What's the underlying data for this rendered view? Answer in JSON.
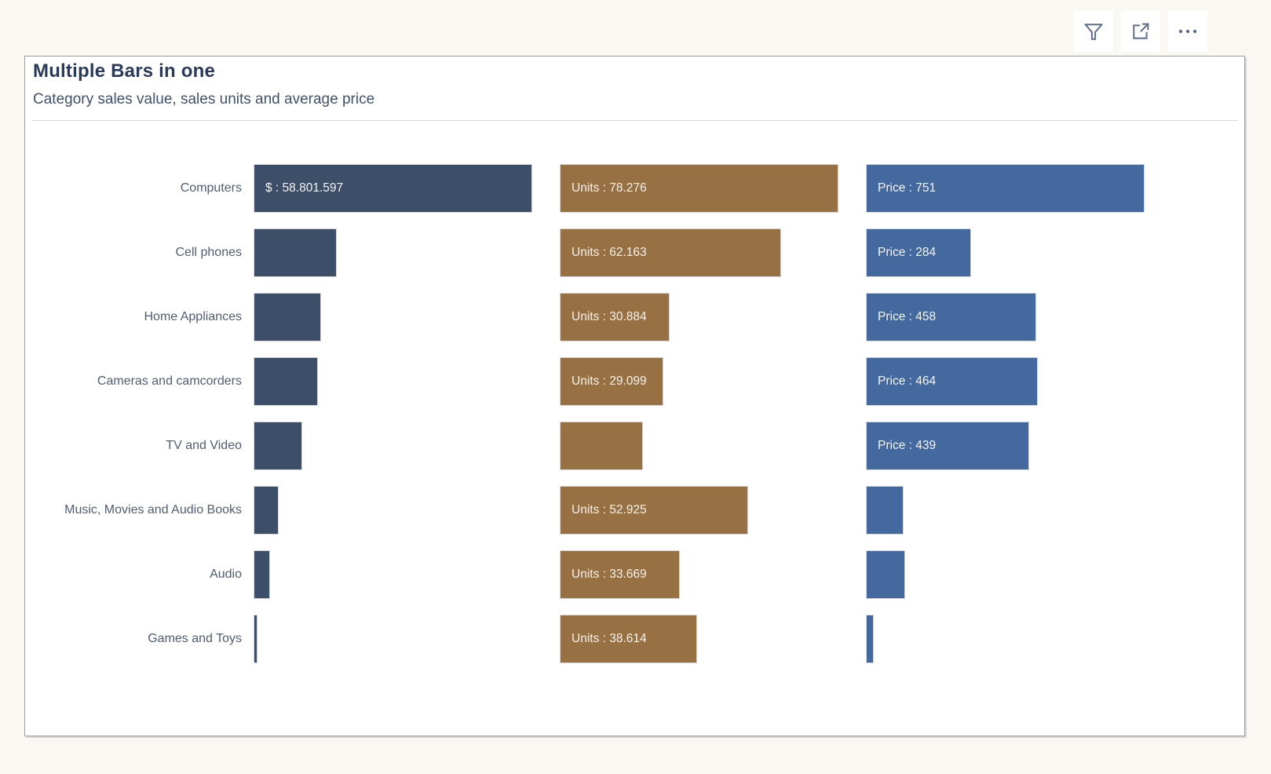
{
  "page": {
    "background": "#FAF8F3"
  },
  "toolbar": {
    "icons": [
      {
        "name": "filter-icon"
      },
      {
        "name": "focus-mode-icon"
      },
      {
        "name": "more-options-icon"
      }
    ],
    "icon_color": "#5F6E8C"
  },
  "card": {
    "title": "Multiple Bars in one",
    "subtitle": "Category sales value, sales units and average price"
  },
  "chart": {
    "series": [
      {
        "key": "sales",
        "name": "$",
        "color": "#3D4E69"
      },
      {
        "key": "units",
        "name": "Units",
        "color": "#977043"
      },
      {
        "key": "price",
        "name": "Price",
        "color": "#44699E"
      }
    ],
    "rows": [
      {
        "category": "Computers",
        "bars": [
          {
            "frac": 1.0,
            "label": "$ : 58.801.597"
          },
          {
            "frac": 1.0,
            "label": "Units : 78.276"
          },
          {
            "frac": 1.0,
            "label": "Price : 751"
          }
        ]
      },
      {
        "category": "Cell phones",
        "bars": [
          {
            "frac": 0.298,
            "label": null
          },
          {
            "frac": 0.794,
            "label": "Units : 62.163"
          },
          {
            "frac": 0.378,
            "label": "Price : 284"
          }
        ]
      },
      {
        "category": "Home Appliances",
        "bars": [
          {
            "frac": 0.242,
            "label": null
          },
          {
            "frac": 0.395,
            "label": "Units : 30.884"
          },
          {
            "frac": 0.61,
            "label": "Price : 458"
          }
        ]
      },
      {
        "category": "Cameras and camcorders",
        "bars": [
          {
            "frac": 0.23,
            "label": null
          },
          {
            "frac": 0.372,
            "label": "Units : 29.099"
          },
          {
            "frac": 0.618,
            "label": "Price : 464"
          }
        ]
      },
      {
        "category": "TV and Video",
        "bars": [
          {
            "frac": 0.174,
            "label": null
          },
          {
            "frac": 0.299,
            "label": null
          },
          {
            "frac": 0.585,
            "label": "Price : 439"
          }
        ]
      },
      {
        "category": "Music, Movies and Audio Books",
        "bars": [
          {
            "frac": 0.09,
            "label": null
          },
          {
            "frac": 0.676,
            "label": "Units : 52.925"
          },
          {
            "frac": 0.135,
            "label": null
          }
        ]
      },
      {
        "category": "Audio",
        "bars": [
          {
            "frac": 0.059,
            "label": null
          },
          {
            "frac": 0.43,
            "label": "Units : 33.669"
          },
          {
            "frac": 0.141,
            "label": null
          }
        ]
      },
      {
        "category": "Games and Toys",
        "bars": [
          {
            "frac": 0.014,
            "label": null
          },
          {
            "frac": 0.493,
            "label": "Units : 38.614"
          },
          {
            "frac": 0.028,
            "label": null
          }
        ]
      }
    ]
  },
  "chart_data": {
    "type": "bar",
    "orientation": "horizontal",
    "title": "Multiple Bars in one",
    "subtitle": "Category sales value, sales units and average price",
    "legend": false,
    "grid": false,
    "categories": [
      "Computers",
      "Cell phones",
      "Home Appliances",
      "Cameras and camcorders",
      "TV and Video",
      "Music, Movies and Audio Books",
      "Audio",
      "Games and Toys"
    ],
    "series": [
      {
        "name": "$ (sales value)",
        "color": "#3D4E69",
        "values": [
          58801597,
          17500000,
          14200000,
          13500000,
          10200000,
          5300000,
          3500000,
          800000
        ],
        "labeled_values": [
          58801597,
          null,
          null,
          null,
          null,
          null,
          null,
          null
        ]
      },
      {
        "name": "Units (sales units)",
        "color": "#977043",
        "values": [
          78276,
          62163,
          30884,
          29099,
          23400,
          52925,
          33669,
          38614
        ],
        "labeled_values": [
          78276,
          62163,
          30884,
          29099,
          null,
          52925,
          33669,
          38614
        ]
      },
      {
        "name": "Price (average price)",
        "color": "#44699E",
        "values": [
          751,
          284,
          458,
          464,
          439,
          102,
          106,
          21
        ],
        "labeled_values": [
          751,
          284,
          458,
          464,
          439,
          null,
          null,
          null
        ]
      }
    ],
    "note": "values without labeled_values are estimated from bar lengths"
  }
}
